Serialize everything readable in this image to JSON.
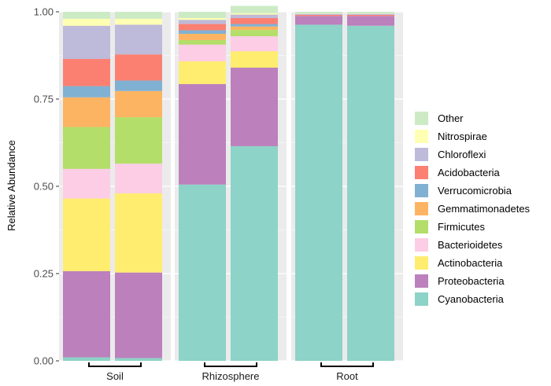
{
  "chart_data": {
    "type": "bar",
    "stacked": true,
    "facets": [
      "Soil",
      "Rhizosphere",
      "Root"
    ],
    "bars_per_facet": 2,
    "ylabel": "Relative Abundance",
    "ylim": [
      0,
      1
    ],
    "y_ticks": [
      "0.00",
      "0.25",
      "0.50",
      "0.75",
      "1.00"
    ],
    "grid": true,
    "legend_position": "right",
    "series": [
      {
        "name": "Cyanobacteria",
        "color": "#8DD3C7",
        "values": [
          0.01,
          0.008,
          0.505,
          0.615,
          0.963,
          0.96
        ]
      },
      {
        "name": "Proteobacteria",
        "color": "#BC80BD",
        "values": [
          0.247,
          0.245,
          0.288,
          0.225,
          0.025,
          0.028
        ]
      },
      {
        "name": "Actinobacteria",
        "color": "#FFED6F",
        "values": [
          0.208,
          0.227,
          0.065,
          0.047,
          0.0,
          0.0
        ]
      },
      {
        "name": "Bacterioidetes",
        "color": "#FCCDE5",
        "values": [
          0.085,
          0.085,
          0.048,
          0.043,
          0.0,
          0.0
        ]
      },
      {
        "name": "Firmicutes",
        "color": "#B3DE69",
        "values": [
          0.12,
          0.133,
          0.013,
          0.018,
          0.0,
          0.0
        ]
      },
      {
        "name": "Gemmatimonadetes",
        "color": "#FDB462",
        "values": [
          0.085,
          0.075,
          0.018,
          0.01,
          0.0,
          0.0
        ]
      },
      {
        "name": "Verrucomicrobia",
        "color": "#80B1D3",
        "values": [
          0.032,
          0.03,
          0.01,
          0.007,
          0.0,
          0.0
        ]
      },
      {
        "name": "Acidobacteria",
        "color": "#FB8072",
        "values": [
          0.078,
          0.075,
          0.018,
          0.017,
          0.003,
          0.003
        ]
      },
      {
        "name": "Chloroflexi",
        "color": "#BEBADA",
        "values": [
          0.095,
          0.085,
          0.012,
          0.01,
          0.003,
          0.003
        ]
      },
      {
        "name": "Nitrospirae",
        "color": "#FFFFB3",
        "values": [
          0.02,
          0.017,
          0.005,
          0.004,
          0.001,
          0.001
        ]
      },
      {
        "name": "Other",
        "color": "#CCEBC5",
        "values": [
          0.02,
          0.02,
          0.018,
          0.021,
          0.005,
          0.005
        ]
      }
    ]
  }
}
